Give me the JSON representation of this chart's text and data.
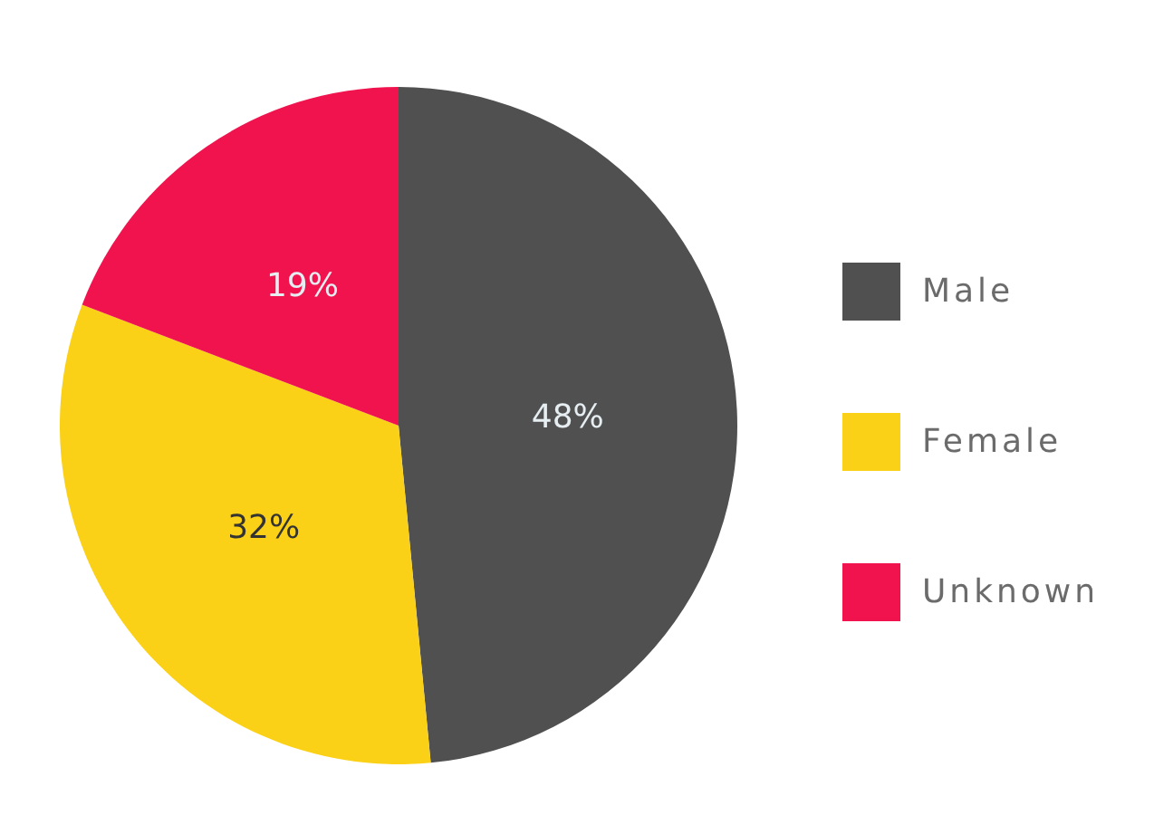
{
  "chart_data": {
    "type": "pie",
    "categories": [
      "Male",
      "Female",
      "Unknown"
    ],
    "values": [
      48,
      32,
      19
    ],
    "colors": [
      "#505050",
      "#fad116",
      "#f0134d"
    ],
    "value_labels": [
      "48%",
      "32%",
      "19%"
    ],
    "legend": "right"
  }
}
